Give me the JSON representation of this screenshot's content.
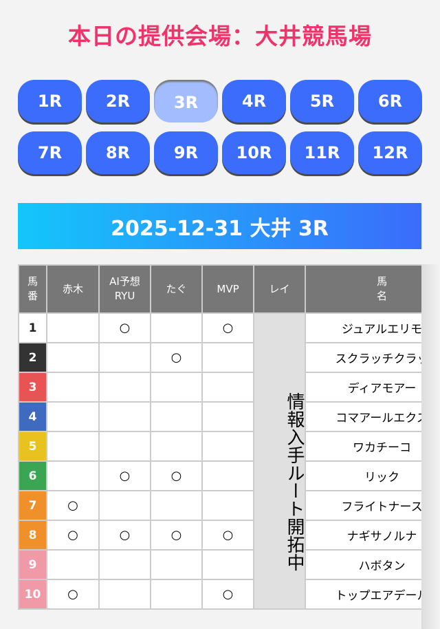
{
  "title": "本日の提供会場：大井競馬場",
  "races": [
    "1R",
    "2R",
    "3R",
    "4R",
    "5R",
    "6R",
    "7R",
    "8R",
    "9R",
    "10R",
    "11R",
    "12R"
  ],
  "active_race": "3R",
  "banner": "2025-12-31 大井 3R",
  "table": {
    "headers": [
      "馬\n番",
      "赤木",
      "AI予想\nRYU",
      "たぐ",
      "MVP",
      "レイ",
      "馬\n名"
    ],
    "rei_note": "情報入手ルート開拓中",
    "mark": "○",
    "rows": [
      {
        "num": "1",
        "bg": "#ffffff",
        "fg": "#222222",
        "marks": [
          false,
          true,
          false,
          true
        ],
        "name": "ジュアルエリモ"
      },
      {
        "num": "2",
        "bg": "#333333",
        "fg": "#ffffff",
        "marks": [
          false,
          false,
          true,
          false
        ],
        "name": "スクラッチクラッ"
      },
      {
        "num": "3",
        "bg": "#e85454",
        "fg": "#ffffff",
        "marks": [
          false,
          false,
          false,
          false
        ],
        "name": "ディアモアー"
      },
      {
        "num": "4",
        "bg": "#3e6bbf",
        "fg": "#ffffff",
        "marks": [
          false,
          false,
          false,
          false
        ],
        "name": "コマアールエクス"
      },
      {
        "num": "5",
        "bg": "#e8c21e",
        "fg": "#ffffff",
        "marks": [
          false,
          false,
          false,
          false
        ],
        "name": "ワカチーコ"
      },
      {
        "num": "6",
        "bg": "#3aa552",
        "fg": "#ffffff",
        "marks": [
          false,
          true,
          true,
          false
        ],
        "name": "リック"
      },
      {
        "num": "7",
        "bg": "#f0902a",
        "fg": "#ffffff",
        "marks": [
          true,
          false,
          false,
          false
        ],
        "name": "フライトナース"
      },
      {
        "num": "8",
        "bg": "#f0902a",
        "fg": "#ffffff",
        "marks": [
          true,
          true,
          true,
          true
        ],
        "name": "ナギサノルナ"
      },
      {
        "num": "9",
        "bg": "#f09aa8",
        "fg": "#ffffff",
        "marks": [
          false,
          false,
          false,
          false
        ],
        "name": "ハボタン"
      },
      {
        "num": "10",
        "bg": "#f09aa8",
        "fg": "#ffffff",
        "marks": [
          true,
          false,
          false,
          true
        ],
        "name": "トップエアデール"
      }
    ]
  }
}
